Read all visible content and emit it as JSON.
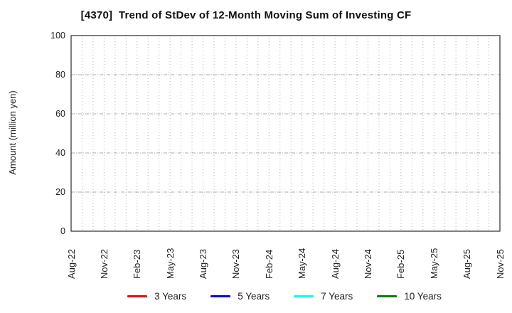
{
  "title": "[4370]  Trend of StDev of 12-Month Moving Sum of Investing CF",
  "chart_data": {
    "type": "line",
    "title": "[4370]  Trend of StDev of 12-Month Moving Sum of Investing CF",
    "xlabel": "",
    "ylabel": "Amount (million yen)",
    "ylim": [
      0,
      100
    ],
    "yticks": [
      0,
      20,
      40,
      60,
      80,
      100
    ],
    "categories": [
      "Aug-22",
      "Nov-22",
      "Feb-23",
      "May-23",
      "Aug-23",
      "Nov-23",
      "Feb-24",
      "May-24",
      "Aug-24",
      "Nov-24",
      "Feb-25",
      "May-25",
      "Aug-25",
      "Nov-25"
    ],
    "minor_ticks_per_major": 3,
    "grid": true,
    "grid_color": "#b4b4b4",
    "axis_color": "#2a2a2a",
    "legend_position": "bottom",
    "data_visible": false,
    "series": [
      {
        "name": "3 Years",
        "color": "#ff0000",
        "values": []
      },
      {
        "name": "5 Years",
        "color": "#0000ff",
        "values": []
      },
      {
        "name": "7 Years",
        "color": "#00ffff",
        "values": []
      },
      {
        "name": "10 Years",
        "color": "#008000",
        "values": []
      }
    ]
  }
}
